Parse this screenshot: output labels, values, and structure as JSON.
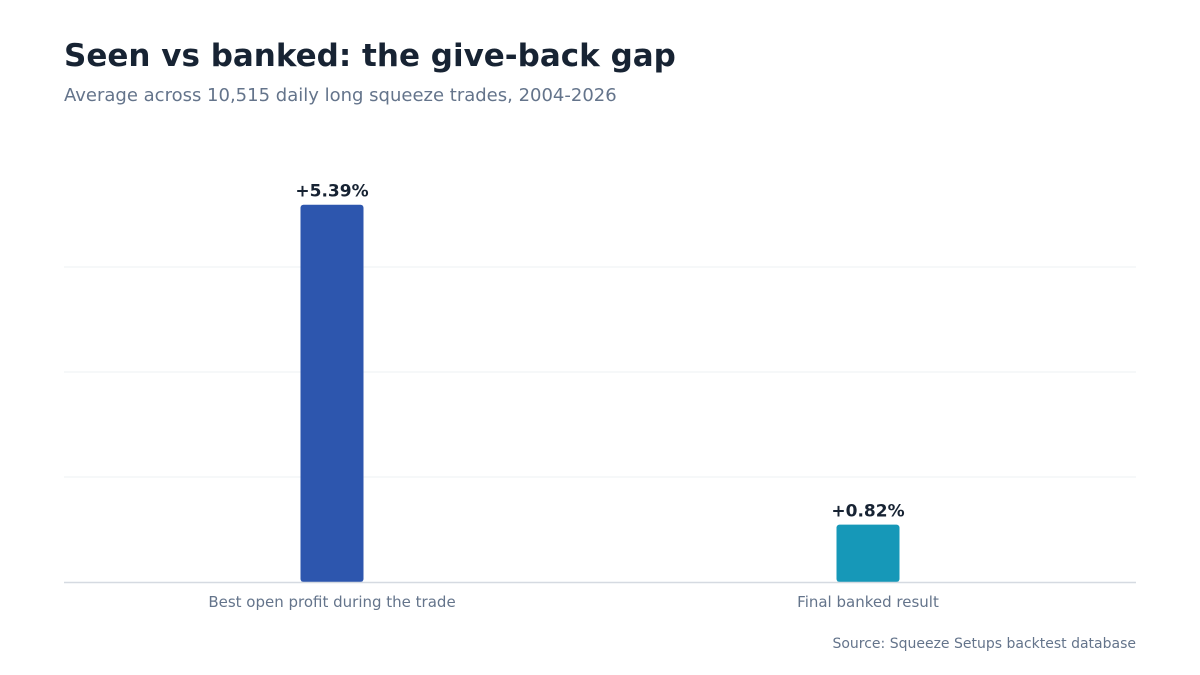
{
  "header": {
    "title": "Seen vs banked: the give-back gap",
    "subtitle": "Average across 10,515 daily long squeeze trades, 2004-2026"
  },
  "footer": {
    "source": "Source: Squeeze Setups backtest database"
  },
  "chart_data": {
    "type": "bar",
    "categories": [
      "Best open profit during the trade",
      "Final banked result"
    ],
    "values": [
      5.39,
      0.82
    ],
    "value_labels": [
      "+5.39%",
      "+0.82%"
    ],
    "colors": [
      "#2d56ae",
      "#1698b8"
    ],
    "ylim": [
      0,
      6
    ],
    "gridlines": [
      1.5,
      3,
      4.5
    ],
    "grid": true,
    "xlabel": "",
    "ylabel": ""
  }
}
